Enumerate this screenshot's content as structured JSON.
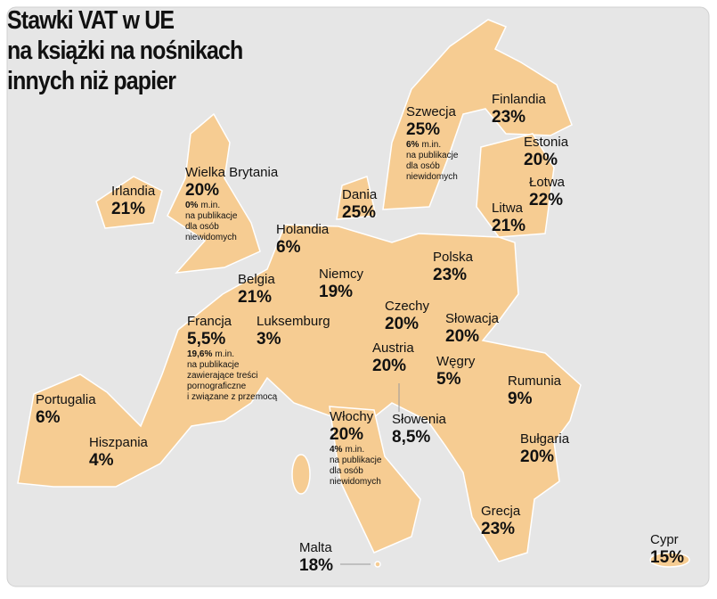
{
  "header": {
    "title": [
      "Stawki VAT w UE",
      "na książki na nośnikach",
      "innych niż papier"
    ]
  },
  "countries": [
    {
      "name": "Finlandia",
      "rate": "23%"
    },
    {
      "name": "Szwecja",
      "rate": "25%",
      "note": {
        "bold": "6%",
        "lines": [
          "m.in.",
          "na publikacje",
          "dla osób",
          "niewidomych"
        ]
      }
    },
    {
      "name": "Estonia",
      "rate": "20%"
    },
    {
      "name": "Łotwa",
      "rate": "22%"
    },
    {
      "name": "Litwa",
      "rate": "21%"
    },
    {
      "name": "Irlandia",
      "rate": "21%"
    },
    {
      "name": "Wielka Brytania",
      "rate": "20%",
      "note": {
        "bold": "0%",
        "lines": [
          "m.in.",
          "na publikacje",
          "dla osób",
          "niewidomych"
        ]
      }
    },
    {
      "name": "Dania",
      "rate": "25%"
    },
    {
      "name": "Holandia",
      "rate": "6%"
    },
    {
      "name": "Polska",
      "rate": "23%"
    },
    {
      "name": "Niemcy",
      "rate": "19%"
    },
    {
      "name": "Belgia",
      "rate": "21%"
    },
    {
      "name": "Czechy",
      "rate": "20%"
    },
    {
      "name": "Słowacja",
      "rate": "20%"
    },
    {
      "name": "Francja",
      "rate": "5,5%",
      "note": {
        "bold": "19,6%",
        "lines": [
          "m.in.",
          "na publikacje",
          "zawierające treści",
          "pornograficzne",
          "i związane z przemocą"
        ]
      }
    },
    {
      "name": "Luksemburg",
      "rate": "3%"
    },
    {
      "name": "Austria",
      "rate": "20%"
    },
    {
      "name": "Węgry",
      "rate": "5%"
    },
    {
      "name": "Rumunia",
      "rate": "9%"
    },
    {
      "name": "Portugalia",
      "rate": "6%"
    },
    {
      "name": "Słowenia",
      "rate": "8,5%"
    },
    {
      "name": "Włochy",
      "rate": "20%",
      "note": {
        "bold": "4%",
        "lines": [
          "m.in.",
          "na publikacje",
          "dla osób",
          "niewidomych"
        ]
      }
    },
    {
      "name": "Hiszpania",
      "rate": "4%"
    },
    {
      "name": "Bułgaria",
      "rate": "20%"
    },
    {
      "name": "Grecja",
      "rate": "23%"
    },
    {
      "name": "Malta",
      "rate": "18%"
    },
    {
      "name": "Cypr",
      "rate": "15%"
    }
  ]
}
